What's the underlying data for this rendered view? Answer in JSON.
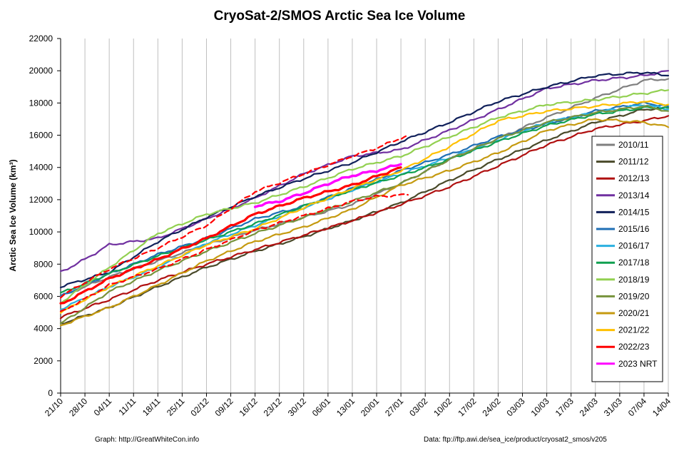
{
  "chart_data": {
    "type": "line",
    "title": "CryoSat-2/SMOS Arctic Sea Ice Volume",
    "ylabel": "Arctic Sea Ice Volume (km³)",
    "xlabel": "",
    "ylim": [
      0,
      22000
    ],
    "yticks": [
      0,
      2000,
      4000,
      6000,
      8000,
      10000,
      12000,
      14000,
      16000,
      18000,
      20000,
      22000
    ],
    "x_range_days": [
      0,
      175
    ],
    "xtick_labels": [
      "21/10",
      "28/10",
      "04/11",
      "11/11",
      "18/11",
      "25/11",
      "02/12",
      "09/12",
      "16/12",
      "23/12",
      "30/12",
      "06/01",
      "13/01",
      "20/01",
      "27/01",
      "03/02",
      "10/02",
      "17/02",
      "24/02",
      "03/03",
      "10/03",
      "17/03",
      "24/03",
      "31/03",
      "07/04",
      "14/04"
    ],
    "grid": "vertical-dates",
    "legend_position": "right",
    "series": [
      {
        "name": "2010/11",
        "color": "#7f7f7f",
        "width": 2.2,
        "dash": "",
        "x": [
          0,
          14,
          28,
          42,
          56,
          70,
          84,
          98,
          112,
          126,
          140,
          154,
          168,
          175
        ],
        "y": [
          6000,
          7200,
          8200,
          9200,
          10100,
          10900,
          11700,
          13000,
          14500,
          15800,
          17100,
          18300,
          19400,
          19500
        ]
      },
      {
        "name": "2011/12",
        "color": "#4a4a2a",
        "width": 2.2,
        "dash": "",
        "x": [
          0,
          14,
          28,
          42,
          56,
          70,
          84,
          98,
          112,
          126,
          140,
          154,
          168,
          175
        ],
        "y": [
          4300,
          5300,
          6600,
          7800,
          8800,
          9700,
          10700,
          11800,
          13200,
          14500,
          15700,
          16800,
          17600,
          17700
        ]
      },
      {
        "name": "2012/13",
        "color": "#b01010",
        "width": 2.2,
        "dash": "",
        "x": [
          0,
          14,
          28,
          42,
          56,
          70,
          84,
          98,
          112,
          126,
          140,
          154,
          168,
          175
        ],
        "y": [
          4700,
          5800,
          7000,
          8000,
          8900,
          9800,
          10700,
          11700,
          12800,
          14100,
          15400,
          16400,
          16900,
          17200
        ]
      },
      {
        "name": "2013/14",
        "color": "#7030a0",
        "width": 2.2,
        "dash": "",
        "x": [
          0,
          7,
          14,
          28,
          42,
          56,
          70,
          84,
          98,
          112,
          126,
          140,
          154,
          168,
          175
        ],
        "y": [
          7500,
          8300,
          9200,
          9600,
          10800,
          12100,
          13600,
          14700,
          15100,
          16300,
          17600,
          18900,
          19400,
          19700,
          20000
        ]
      },
      {
        "name": "2014/15",
        "color": "#10205a",
        "width": 2.2,
        "dash": "",
        "x": [
          0,
          14,
          28,
          42,
          56,
          70,
          84,
          98,
          112,
          126,
          140,
          154,
          168,
          175
        ],
        "y": [
          6600,
          7500,
          9400,
          10900,
          12200,
          13300,
          14300,
          15600,
          16800,
          18100,
          19000,
          19700,
          19900,
          19700
        ]
      },
      {
        "name": "2015/16",
        "color": "#1f6fb5",
        "width": 2.2,
        "dash": "",
        "x": [
          0,
          14,
          28,
          42,
          56,
          70,
          84,
          98,
          112,
          126,
          140,
          154,
          168,
          175
        ],
        "y": [
          6000,
          7400,
          8600,
          9600,
          10800,
          11600,
          12700,
          13800,
          14800,
          15900,
          16700,
          17500,
          18000,
          17800
        ]
      },
      {
        "name": "2016/17",
        "color": "#2ab0e0",
        "width": 2.2,
        "dash": "",
        "x": [
          0,
          14,
          28,
          42,
          56,
          70,
          84,
          98,
          112,
          126,
          140,
          154,
          168,
          175
        ],
        "y": [
          5200,
          6600,
          7800,
          9300,
          10400,
          11500,
          12600,
          13600,
          14600,
          15700,
          16800,
          17400,
          17900,
          17600
        ]
      },
      {
        "name": "2017/18",
        "color": "#10a050",
        "width": 2.2,
        "dash": "",
        "x": [
          0,
          14,
          28,
          42,
          56,
          70,
          84,
          98,
          112,
          126,
          140,
          154,
          168,
          175
        ],
        "y": [
          6200,
          7400,
          8500,
          9500,
          10500,
          11600,
          12600,
          13500,
          14500,
          15600,
          16600,
          17300,
          17700,
          17700
        ]
      },
      {
        "name": "2018/19",
        "color": "#92d050",
        "width": 2.2,
        "dash": "",
        "x": [
          0,
          14,
          28,
          42,
          56,
          70,
          84,
          98,
          112,
          126,
          140,
          154,
          168,
          175
        ],
        "y": [
          5600,
          7800,
          9900,
          11100,
          11800,
          12800,
          13900,
          14700,
          15900,
          17100,
          17900,
          18200,
          18600,
          18800
        ]
      },
      {
        "name": "2019/20",
        "color": "#77933c",
        "width": 2.2,
        "dash": "",
        "x": [
          0,
          14,
          28,
          42,
          56,
          70,
          84,
          98,
          112,
          126,
          140,
          154,
          168,
          175
        ],
        "y": [
          4300,
          6300,
          7600,
          8800,
          9900,
          10900,
          11900,
          13000,
          14500,
          15800,
          16800,
          17400,
          17800,
          17500
        ]
      },
      {
        "name": "2020/21",
        "color": "#c59a10",
        "width": 2.2,
        "dash": "",
        "x": [
          0,
          14,
          28,
          42,
          56,
          70,
          84,
          98,
          112,
          126,
          140,
          154,
          168,
          175
        ],
        "y": [
          4200,
          5300,
          6700,
          8200,
          9400,
          10300,
          11400,
          12900,
          13800,
          14900,
          16300,
          17000,
          16800,
          16500
        ]
      },
      {
        "name": "2021/22",
        "color": "#ffc000",
        "width": 2.2,
        "dash": "",
        "x": [
          0,
          14,
          28,
          42,
          56,
          70,
          84,
          98,
          112,
          126,
          140,
          154,
          168,
          175
        ],
        "y": [
          5000,
          6600,
          7900,
          9200,
          10200,
          11500,
          12700,
          13800,
          15300,
          16900,
          17500,
          17800,
          18100,
          17900
        ]
      },
      {
        "name": "2022/23",
        "color": "#ff0000",
        "width": 3.2,
        "dash": "",
        "x": [
          0,
          14,
          28,
          42,
          56,
          70,
          84,
          98
        ],
        "y": [
          5500,
          7100,
          8300,
          9600,
          11100,
          12100,
          12900,
          14000
        ]
      },
      {
        "name": "2022/23 dashed upper",
        "color": "#ff0000",
        "width": 2.2,
        "dash": "7 5",
        "x": [
          0,
          14,
          28,
          42,
          56,
          70,
          84,
          91,
          100
        ],
        "y": [
          6000,
          7700,
          9000,
          10400,
          12500,
          13600,
          14700,
          15200,
          16000
        ]
      },
      {
        "name": "2022/23 dashed lower",
        "color": "#ff0000",
        "width": 2.2,
        "dash": "7 5",
        "x": [
          0,
          14,
          28,
          42,
          56,
          70,
          84,
          91,
          100
        ],
        "y": [
          5000,
          6700,
          7700,
          8900,
          10100,
          11000,
          11900,
          12200,
          12300
        ]
      },
      {
        "name": "2023 NRT",
        "color": "#ff00ff",
        "width": 3.4,
        "dash": "",
        "x": [
          56,
          63,
          70,
          77,
          84,
          91,
          98
        ],
        "y": [
          11600,
          11900,
          12400,
          13000,
          13500,
          13800,
          14200
        ]
      }
    ],
    "legend": [
      "2010/11",
      "2011/12",
      "2012/13",
      "2013/14",
      "2014/15",
      "2015/16",
      "2016/17",
      "2017/18",
      "2018/19",
      "2019/20",
      "2020/21",
      "2021/22",
      "2022/23",
      "2023 NRT"
    ],
    "legend_colors": [
      "#7f7f7f",
      "#4a4a2a",
      "#b01010",
      "#7030a0",
      "#10205a",
      "#1f6fb5",
      "#2ab0e0",
      "#10a050",
      "#92d050",
      "#77933c",
      "#c59a10",
      "#ffc000",
      "#ff0000",
      "#ff00ff"
    ]
  },
  "footer": {
    "left": "Graph: http://GreatWhiteCon.info",
    "right": "Data: ftp://ftp.awi.de/sea_ice/product/cryosat2_smos/v205"
  }
}
